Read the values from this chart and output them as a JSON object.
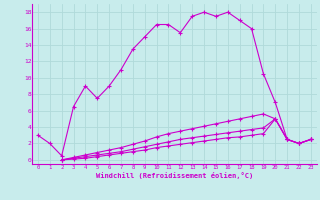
{
  "xlabel": "Windchill (Refroidissement éolien,°C)",
  "background_color": "#c8ecec",
  "grid_color": "#b0dada",
  "line_color": "#cc00cc",
  "xlim": [
    -0.5,
    23.5
  ],
  "ylim": [
    -0.5,
    19
  ],
  "xticks": [
    0,
    1,
    2,
    3,
    4,
    5,
    6,
    7,
    8,
    9,
    10,
    11,
    12,
    13,
    14,
    15,
    16,
    17,
    18,
    19,
    20,
    21,
    22,
    23
  ],
  "yticks": [
    0,
    2,
    4,
    6,
    8,
    10,
    12,
    14,
    16,
    18
  ],
  "series1_x": [
    0,
    1,
    2,
    3,
    4,
    5,
    6,
    7,
    8,
    9,
    10,
    11,
    12,
    13,
    14,
    15,
    16,
    17,
    18,
    19,
    20,
    21,
    22,
    23
  ],
  "series1_y": [
    3.0,
    2.0,
    0.5,
    6.5,
    9.0,
    7.5,
    9.0,
    11.0,
    13.5,
    15.0,
    16.5,
    16.5,
    15.5,
    17.5,
    18.0,
    17.5,
    18.0,
    17.0,
    16.0,
    10.5,
    7.0,
    2.5,
    2.0,
    2.5
  ],
  "series2_x": [
    2,
    3,
    4,
    5,
    6,
    7,
    8,
    9,
    10,
    11,
    12,
    13,
    14,
    15,
    16,
    17,
    18,
    19,
    20,
    21,
    22,
    23
  ],
  "series2_y": [
    0.0,
    0.3,
    0.6,
    0.9,
    1.2,
    1.5,
    1.9,
    2.3,
    2.8,
    3.2,
    3.5,
    3.8,
    4.1,
    4.4,
    4.7,
    5.0,
    5.3,
    5.6,
    5.0,
    2.5,
    2.0,
    2.5
  ],
  "series3_x": [
    2,
    3,
    4,
    5,
    6,
    7,
    8,
    9,
    10,
    11,
    12,
    13,
    14,
    15,
    16,
    17,
    18,
    19,
    20,
    21,
    22,
    23
  ],
  "series3_y": [
    0.0,
    0.2,
    0.4,
    0.6,
    0.8,
    1.0,
    1.3,
    1.6,
    1.9,
    2.2,
    2.5,
    2.7,
    2.9,
    3.1,
    3.3,
    3.5,
    3.7,
    3.9,
    5.0,
    2.5,
    2.0,
    2.5
  ],
  "series4_x": [
    2,
    3,
    4,
    5,
    6,
    7,
    8,
    9,
    10,
    11,
    12,
    13,
    14,
    15,
    16,
    17,
    18,
    19,
    20,
    21,
    22,
    23
  ],
  "series4_y": [
    0.0,
    0.1,
    0.2,
    0.4,
    0.6,
    0.8,
    1.0,
    1.2,
    1.5,
    1.7,
    1.9,
    2.1,
    2.3,
    2.5,
    2.7,
    2.8,
    3.0,
    3.2,
    5.0,
    2.5,
    2.0,
    2.5
  ]
}
